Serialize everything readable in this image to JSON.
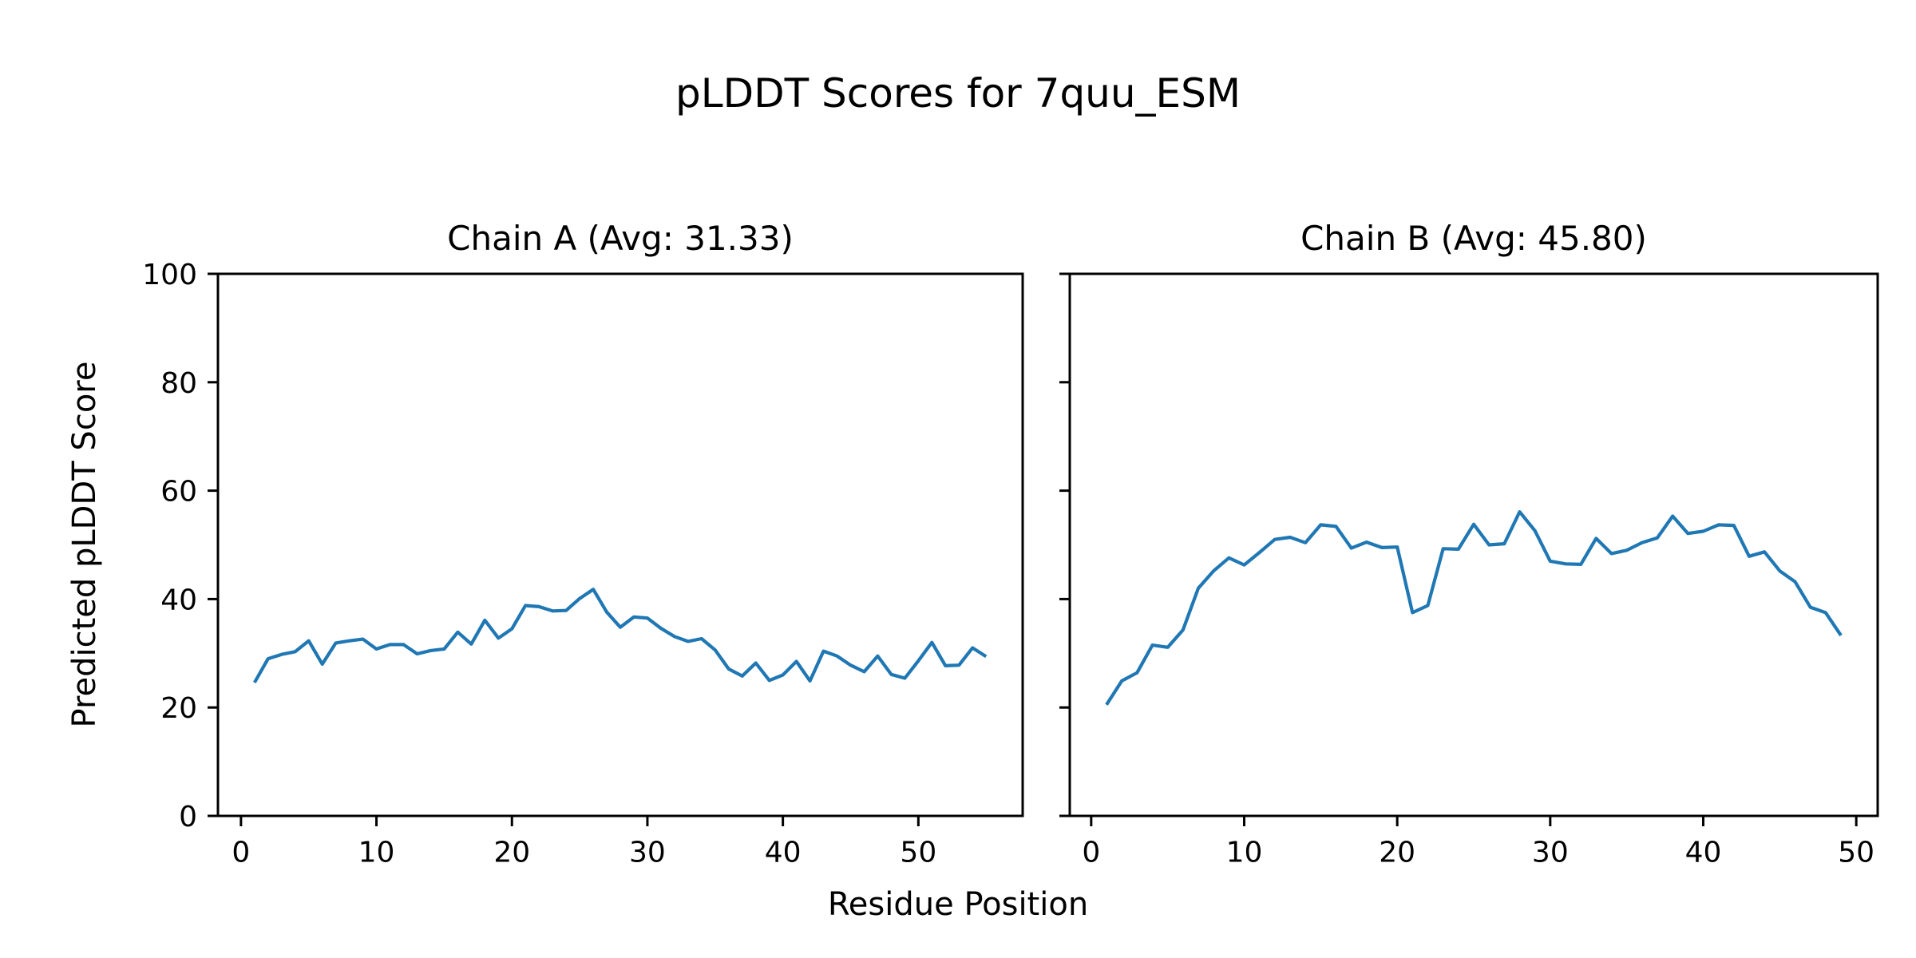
{
  "figure": {
    "suptitle": "pLDDT Scores for 7quu_ESM",
    "xlabel": "Residue Position",
    "ylabel": "Predicted pLDDT Score",
    "background_color": "#ffffff",
    "text_color": "#000000",
    "spine_color": "#000000"
  },
  "chart_data": [
    {
      "type": "line",
      "name": "chain-a",
      "title": "Chain A (Avg: 31.33)",
      "average": 31.33,
      "line_color": "#1f77b4",
      "grid": false,
      "legend": "none",
      "xlim": [
        -1.7,
        57.7
      ],
      "ylim": [
        0,
        100
      ],
      "xticks": [
        0,
        10,
        20,
        30,
        40,
        50
      ],
      "yticks": [
        0,
        20,
        40,
        60,
        80,
        100
      ],
      "show_ytick_labels": true,
      "x": [
        1,
        2,
        3,
        4,
        5,
        6,
        7,
        8,
        9,
        10,
        11,
        12,
        13,
        14,
        15,
        16,
        17,
        18,
        19,
        20,
        21,
        22,
        23,
        24,
        25,
        26,
        27,
        28,
        29,
        30,
        31,
        32,
        33,
        34,
        35,
        36,
        37,
        38,
        39,
        40,
        41,
        42,
        43,
        44,
        45,
        46,
        47,
        48,
        49,
        50,
        51,
        52,
        53,
        54,
        55
      ],
      "values": [
        24.6,
        29.0,
        29.8,
        30.3,
        32.3,
        28.0,
        31.9,
        32.3,
        32.6,
        30.8,
        31.6,
        31.6,
        29.9,
        30.5,
        30.8,
        33.9,
        31.7,
        36.1,
        32.8,
        34.5,
        38.8,
        38.6,
        37.8,
        37.9,
        40.1,
        41.8,
        37.6,
        34.8,
        36.7,
        36.5,
        34.6,
        33.1,
        32.2,
        32.7,
        30.6,
        27.1,
        25.8,
        28.2,
        25.0,
        26.0,
        28.5,
        24.9,
        30.4,
        29.5,
        27.8,
        26.6,
        29.5,
        26.1,
        25.4,
        28.6,
        32.0,
        27.7,
        27.8,
        31.0,
        29.4
      ]
    },
    {
      "type": "line",
      "name": "chain-b",
      "title": "Chain B (Avg: 45.80)",
      "average": 45.8,
      "line_color": "#1f77b4",
      "grid": false,
      "legend": "none",
      "xlim": [
        -1.4,
        51.4
      ],
      "ylim": [
        0,
        100
      ],
      "xticks": [
        0,
        10,
        20,
        30,
        40,
        50
      ],
      "yticks": [
        0,
        20,
        40,
        60,
        80,
        100
      ],
      "show_ytick_labels": false,
      "x": [
        1,
        2,
        3,
        4,
        5,
        6,
        7,
        8,
        9,
        10,
        11,
        12,
        13,
        14,
        15,
        16,
        17,
        18,
        19,
        20,
        21,
        22,
        23,
        24,
        25,
        26,
        27,
        28,
        29,
        30,
        31,
        32,
        33,
        34,
        35,
        36,
        37,
        38,
        39,
        40,
        41,
        42,
        43,
        44,
        45,
        46,
        47,
        48,
        49
      ],
      "values": [
        20.5,
        24.9,
        26.4,
        31.5,
        31.1,
        34.3,
        42.0,
        45.2,
        47.6,
        46.3,
        48.6,
        51.0,
        51.4,
        50.4,
        53.7,
        53.4,
        49.4,
        50.5,
        49.5,
        49.6,
        37.5,
        38.8,
        49.3,
        49.2,
        53.8,
        50.0,
        50.2,
        56.1,
        52.6,
        47.0,
        46.5,
        46.4,
        51.2,
        48.4,
        49.0,
        50.4,
        51.3,
        55.3,
        52.1,
        52.5,
        53.7,
        53.6,
        47.9,
        48.7,
        45.2,
        43.2,
        38.5,
        37.5,
        33.3
      ]
    }
  ]
}
